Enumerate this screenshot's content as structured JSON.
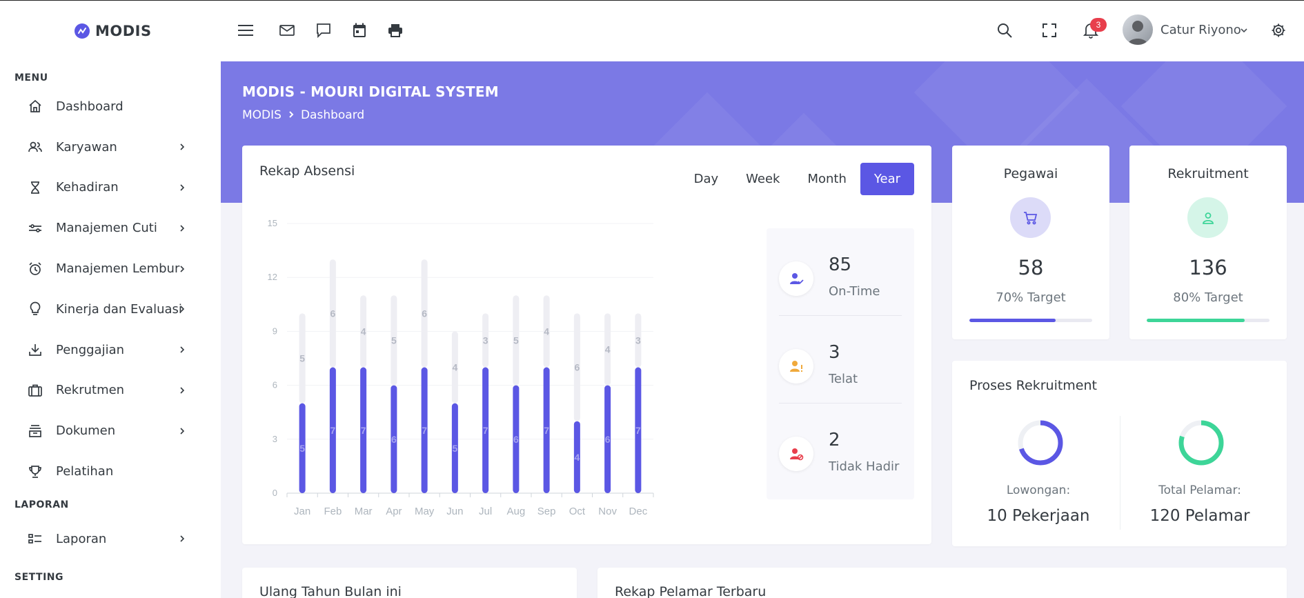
{
  "brand": {
    "name": "MODIS"
  },
  "sidebar": {
    "menu_title": "MENU",
    "items": [
      {
        "label": "Dashboard",
        "icon": "home-icon",
        "has_sub": false
      },
      {
        "label": "Karyawan",
        "icon": "users-icon",
        "has_sub": true
      },
      {
        "label": "Kehadiran",
        "icon": "hourglass-icon",
        "has_sub": true
      },
      {
        "label": "Manajemen Cuti",
        "icon": "sliders-icon",
        "has_sub": true
      },
      {
        "label": "Manajemen Lembur",
        "icon": "alarm-icon",
        "has_sub": true
      },
      {
        "label": "Kinerja dan Evaluasi",
        "icon": "lightbulb-icon",
        "has_sub": true
      },
      {
        "label": "Penggajian",
        "icon": "download-icon",
        "has_sub": true
      },
      {
        "label": "Rekrutmen",
        "icon": "briefcase-icon",
        "has_sub": true
      },
      {
        "label": "Dokumen",
        "icon": "archive-icon",
        "has_sub": true
      },
      {
        "label": "Pelatihan",
        "icon": "trophy-icon",
        "has_sub": false
      }
    ],
    "laporan_title": "LAPORAN",
    "laporan_items": [
      {
        "label": "Laporan",
        "icon": "list-icon",
        "has_sub": true
      }
    ],
    "setting_title": "SETTING"
  },
  "topbar": {
    "notification_count": "3",
    "user_name": "Catur Riyono"
  },
  "header": {
    "title": "MODIS - MOURI DIGITAL SYSTEM",
    "breadcrumb": [
      "MODIS",
      "Dashboard"
    ]
  },
  "rekap": {
    "title": "Rekap Absensi",
    "periods": [
      "Day",
      "Week",
      "Month",
      "Year"
    ],
    "active_period": "Year",
    "stats": [
      {
        "value": "85",
        "label": "On-Time",
        "icon": "user-check-icon",
        "color": "#5b57e4"
      },
      {
        "value": "3",
        "label": "Telat",
        "icon": "user-alert-icon",
        "color": "#f0a93b"
      },
      {
        "value": "2",
        "label": "Tidak Hadir",
        "icon": "user-block-icon",
        "color": "#e83e4c"
      }
    ]
  },
  "chart_data": {
    "type": "bar",
    "categories": [
      "Jan",
      "Feb",
      "Mar",
      "Apr",
      "May",
      "Jun",
      "Jul",
      "Aug",
      "Sep",
      "Oct",
      "Nov",
      "Dec"
    ],
    "series": [
      {
        "values": [
          5,
          7,
          7,
          6,
          7,
          5,
          7,
          6,
          7,
          4,
          6,
          7
        ],
        "color": "#5b57e4"
      },
      {
        "values": [
          5,
          6,
          4,
          5,
          6,
          4,
          3,
          5,
          4,
          6,
          4,
          3
        ],
        "color": "#eeeef3"
      }
    ],
    "stacked": true,
    "yticks": [
      "0",
      "3",
      "6",
      "9",
      "12",
      "15"
    ],
    "ylim": [
      0,
      15
    ],
    "grid": true,
    "data_labels": true
  },
  "kpis": [
    {
      "title": "Pegawai",
      "value": "58",
      "target_label": "70% Target",
      "progress": 0.7,
      "color": "#5b57e4",
      "bg": "#dcdbf8",
      "icon": "cart-icon"
    },
    {
      "title": "Rekruitment",
      "value": "136",
      "target_label": "80% Target",
      "progress": 0.8,
      "color": "#3dd598",
      "bg": "#d5f5e8",
      "icon": "user-icon"
    }
  ],
  "proses": {
    "title": "Proses Rekruitment",
    "items": [
      {
        "label": "Lowongan:",
        "value": "10 Pekerjaan",
        "progress": 0.7,
        "color": "#5b57e4"
      },
      {
        "label": "Total Pelamar:",
        "value": "120 Pelamar",
        "progress": 0.8,
        "color": "#3dd598"
      }
    ]
  },
  "bottom": {
    "left_title": "Ulang Tahun Bulan ini",
    "right_title": "Rekap Pelamar Terbaru"
  }
}
